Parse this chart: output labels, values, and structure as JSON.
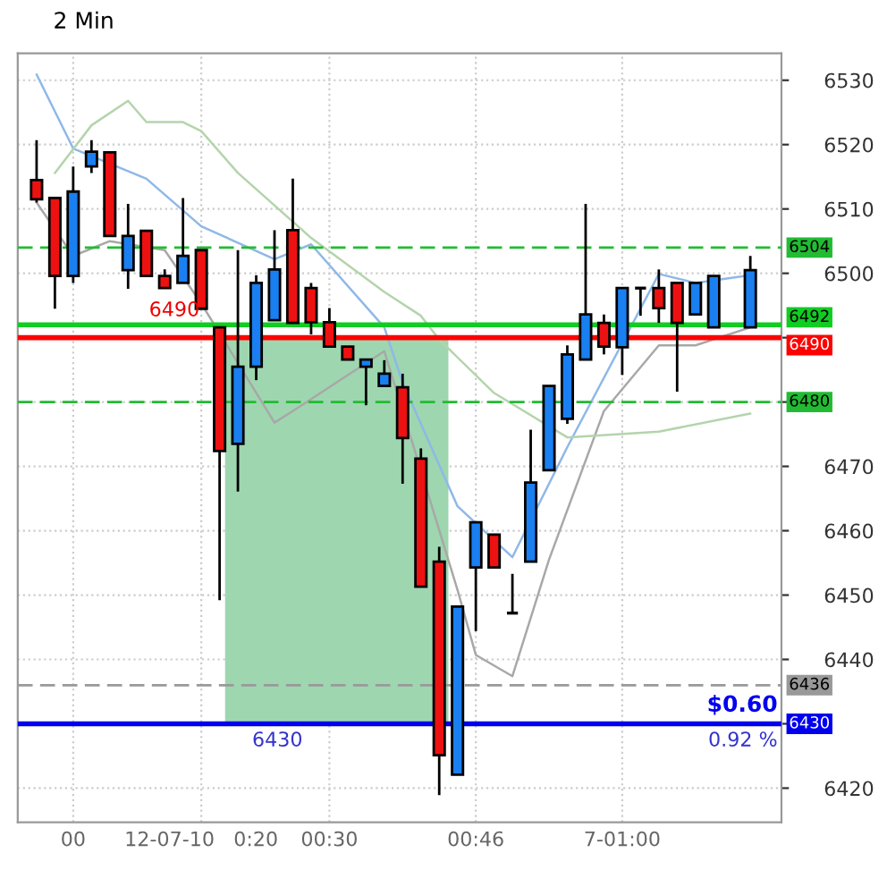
{
  "chart_data": {
    "type": "candlestick",
    "title": "2 Min",
    "categories": [
      null,
      null,
      "00",
      null,
      null,
      null,
      null,
      null,
      null,
      "12-07-10   0:20",
      null,
      null,
      null,
      null,
      null,
      null,
      "00:30",
      null,
      null,
      null,
      null,
      null,
      null,
      null,
      "00:46",
      null,
      null,
      null,
      null,
      null,
      null,
      null,
      "7-01:00",
      null,
      null,
      null,
      null,
      null,
      null,
      null
    ],
    "ohlc": [
      [
        6514.5,
        6520.7,
        6511,
        6511.5
      ],
      [
        6511.7,
        6511.7,
        6494.5,
        6499.6
      ],
      [
        6499.6,
        6516.6,
        6498.5,
        6512.7
      ],
      [
        6516.6,
        6520.7,
        6515.6,
        6518.9
      ],
      [
        6518.8,
        6518.8,
        6505.8,
        6505.8
      ],
      [
        6500.5,
        6510.8,
        6497.6,
        6505.8
      ],
      [
        6506.6,
        6506.6,
        6499.6,
        6499.6
      ],
      [
        6499.6,
        6500.6,
        6497.7,
        6497.7
      ],
      [
        6498.5,
        6511.7,
        6498.5,
        6502.7
      ],
      [
        6503.6,
        6503.6,
        6494.5,
        6494.5
      ],
      [
        6491.6,
        6491.6,
        6449.2,
        6472.4
      ],
      [
        6473.5,
        6503.6,
        6466.1,
        6485.5
      ],
      [
        6485.5,
        6499.7,
        6483.4,
        6498.5
      ],
      [
        6492.7,
        6506.7,
        6492.7,
        6500.6
      ],
      [
        6506.7,
        6514.7,
        6492.3,
        6492.3
      ],
      [
        6497.7,
        6498.5,
        6490.5,
        6492.4
      ],
      [
        6492.4,
        6494.6,
        6488.6,
        6488.6
      ],
      [
        6488.6,
        6488.6,
        6486.6,
        6486.6
      ],
      [
        6485.5,
        6486.6,
        6479.5,
        6486.6
      ],
      [
        6482.5,
        6486.5,
        6482.5,
        6484.4
      ],
      [
        6482.3,
        6484.4,
        6467.3,
        6474.4
      ],
      [
        6471.2,
        6472.8,
        6451.3,
        6451.3
      ],
      [
        6455.2,
        6457.5,
        6418.9,
        6425.1
      ],
      [
        6422.1,
        6448.2,
        6422.1,
        6448.2
      ],
      [
        6454.3,
        6461.3,
        6444.4,
        6461.3
      ],
      [
        6459.4,
        6459.4,
        6454.3,
        6454.3
      ],
      [
        6447.2,
        6453.3,
        6447.2,
        6447.2
      ],
      [
        6455.2,
        6475.7,
        6455.2,
        6467.5
      ],
      [
        6469.4,
        6482.5,
        6469.4,
        6482.5
      ],
      [
        6477.4,
        6488.8,
        6476.6,
        6487.4
      ],
      [
        6486.6,
        6510.8,
        6486.6,
        6493.6
      ],
      [
        6492.3,
        6493.6,
        6487.4,
        6488.6
      ],
      [
        6488.5,
        6497.7,
        6484.2,
        6497.7
      ],
      [
        6497.7,
        6497.7,
        6493.4,
        6497.7
      ],
      [
        6497.7,
        6500.6,
        6492.3,
        6494.6
      ],
      [
        6498.5,
        6498.5,
        6481.6,
        6492.3
      ],
      [
        6493.6,
        6498.5,
        6493.6,
        6498.5
      ],
      [
        6491.6,
        6499.6,
        6491.6,
        6499.6
      ],
      null,
      [
        6491.6,
        6502.7,
        6491.6,
        6500.5
      ]
    ],
    "colors": [
      "#ee1111",
      "#ee1111",
      "#1a7ff0",
      "#1a7ff0",
      "#ee1111",
      "#1a7ff0",
      "#ee1111",
      "#ee1111",
      "#1a7ff0",
      "#ee1111",
      "#ee1111",
      "#1a7ff0",
      "#1a7ff0",
      "#1a7ff0",
      "#ee1111",
      "#ee1111",
      "#ee1111",
      "#ee1111",
      "#1a7ff0",
      "#1a7ff0",
      "#ee1111",
      "#ee1111",
      "#ee1111",
      "#1a7ff0",
      "#1a7ff0",
      "#ee1111",
      "#000000",
      "#1a7ff0",
      "#1a7ff0",
      "#1a7ff0",
      "#1a7ff0",
      "#ee1111",
      "#1a7ff0",
      "#000000",
      "#ee1111",
      "#ee1111",
      "#1a7ff0",
      "#1a7ff0",
      null,
      "#1a7ff0"
    ],
    "series": [
      {
        "type": "line",
        "color": "#8fb8e8",
        "values": [
          6530.9,
          null,
          6519.4,
          null,
          null,
          null,
          6514.7,
          null,
          null,
          6507.3,
          null,
          null,
          null,
          6502.2,
          null,
          6504.5,
          null,
          null,
          null,
          6491.6,
          6483,
          null,
          null,
          6463.8,
          null,
          null,
          6455.9,
          null,
          null,
          6473,
          null,
          null,
          null,
          null,
          6499.9,
          null,
          6498.5,
          null,
          null,
          6499.7
        ]
      },
      {
        "type": "line",
        "color": "#a8a8a8",
        "values": [
          6511,
          null,
          6502.7,
          null,
          6505,
          null,
          null,
          6503.6,
          null,
          6495.3,
          null,
          null,
          null,
          6476.8,
          6478.6,
          null,
          null,
          null,
          null,
          6487.9,
          null,
          null,
          null,
          6450.8,
          6440.7,
          null,
          6437.4,
          null,
          6455.5,
          null,
          null,
          6478.6,
          null,
          null,
          6488.8,
          null,
          6488.8,
          null,
          null,
          6491.6
        ]
      },
      {
        "type": "line",
        "color": "#b4d4ac",
        "values": [
          null,
          6515.6,
          null,
          6523,
          null,
          6526.8,
          6523.5,
          null,
          6523.5,
          6522.1,
          null,
          6515.6,
          null,
          null,
          null,
          6505.5,
          null,
          null,
          null,
          6497.1,
          null,
          6493.4,
          6489.7,
          null,
          null,
          6481.4,
          null,
          null,
          null,
          6474.5,
          null,
          null,
          null,
          null,
          6475.4,
          null,
          null,
          null,
          null,
          6478.2
        ]
      }
    ],
    "ylim": [
      6414.7,
      6534.2
    ],
    "yticks": [
      6420,
      {
        "value": 6430,
        "label": null
      },
      6440,
      6450,
      6460,
      6470,
      {
        "value": 6480,
        "label": null
      },
      {
        "value": 6490,
        "label": null
      },
      6500,
      6510,
      6520,
      6530
    ],
    "ref_lines": [
      {
        "axis": "y",
        "value": 6504,
        "label": "6504",
        "color": "#22bb33",
        "line_style": "dashed"
      },
      {
        "axis": "y",
        "value": 6492,
        "label": "6492",
        "color": "#11cc22",
        "line_style": "solid"
      },
      {
        "axis": "y",
        "value": 6490,
        "label": "6490",
        "color": "#ff0000",
        "line_style": "solid"
      },
      {
        "axis": "y",
        "value": 6480,
        "label": "6480",
        "color": "#22bb33",
        "line_style": "dashed"
      },
      {
        "axis": "y",
        "value": 6436,
        "label": "6436",
        "color": "#999999",
        "line_style": "dashed"
      },
      {
        "axis": "y",
        "value": 6430,
        "label": "6430",
        "color": "#0000ee",
        "line_style": "solid"
      }
    ],
    "annotations": [
      {
        "text": "6490",
        "y": 6490
      },
      {
        "text": "6430",
        "y": 6430
      },
      {
        "text": "$0.60",
        "y": 6430
      },
      {
        "text": "0.92 %",
        "y": 6430
      }
    ],
    "grid": true
  }
}
